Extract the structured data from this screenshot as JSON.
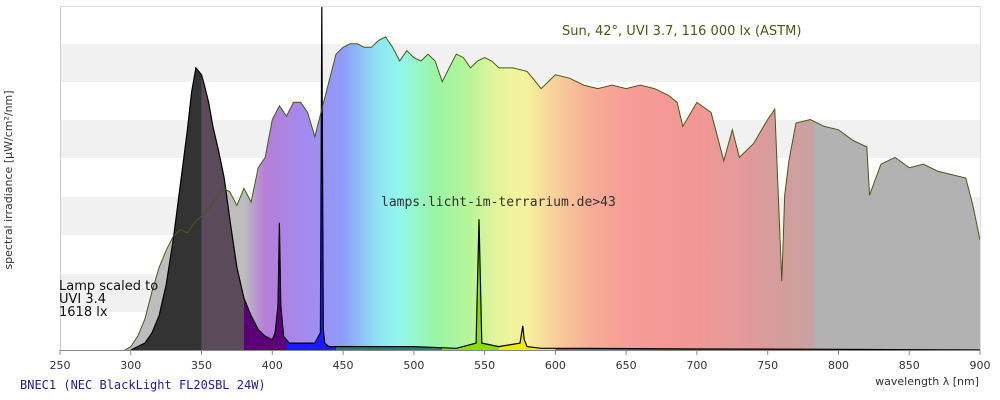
{
  "chart_data": {
    "type": "area",
    "xlabel": "wavelength λ [nm]",
    "ylabel": "spectral irradiance [µW/cm²/nm]",
    "xlim": [
      250,
      900
    ],
    "ylim": [
      0,
      1
    ],
    "x_ticks": [
      250,
      300,
      350,
      400,
      450,
      500,
      550,
      600,
      650,
      700,
      750,
      800,
      850,
      900
    ],
    "grid": "horizontal bands",
    "series": [
      {
        "name": "Sun, 42°, UVI 3.7, 116 000 lx (ASTM)",
        "color": "#4a5a14",
        "x": [
          296,
          300,
          305,
          310,
          315,
          320,
          325,
          330,
          335,
          340,
          345,
          350,
          355,
          360,
          365,
          370,
          375,
          380,
          385,
          390,
          395,
          400,
          405,
          410,
          415,
          420,
          425,
          430,
          435,
          440,
          445,
          450,
          455,
          460,
          465,
          470,
          475,
          480,
          485,
          490,
          495,
          500,
          505,
          510,
          515,
          520,
          525,
          530,
          535,
          540,
          545,
          550,
          555,
          560,
          570,
          580,
          590,
          600,
          610,
          620,
          630,
          640,
          650,
          660,
          670,
          680,
          686,
          690,
          700,
          710,
          719,
          725,
          730,
          740,
          750,
          755,
          760,
          762,
          765,
          770,
          780,
          790,
          800,
          810,
          820,
          822,
          830,
          840,
          850,
          860,
          870,
          880,
          890,
          895,
          900
        ],
        "values": [
          0.0,
          0.01,
          0.04,
          0.09,
          0.17,
          0.24,
          0.29,
          0.33,
          0.35,
          0.34,
          0.37,
          0.39,
          0.41,
          0.44,
          0.47,
          0.46,
          0.42,
          0.47,
          0.43,
          0.53,
          0.56,
          0.67,
          0.71,
          0.68,
          0.72,
          0.72,
          0.69,
          0.62,
          0.7,
          0.78,
          0.86,
          0.88,
          0.89,
          0.89,
          0.88,
          0.88,
          0.9,
          0.91,
          0.88,
          0.84,
          0.87,
          0.85,
          0.84,
          0.86,
          0.84,
          0.78,
          0.82,
          0.86,
          0.85,
          0.82,
          0.84,
          0.85,
          0.84,
          0.82,
          0.82,
          0.81,
          0.76,
          0.8,
          0.79,
          0.77,
          0.76,
          0.77,
          0.76,
          0.77,
          0.76,
          0.74,
          0.72,
          0.65,
          0.72,
          0.69,
          0.55,
          0.64,
          0.56,
          0.6,
          0.67,
          0.7,
          0.2,
          0.45,
          0.55,
          0.66,
          0.67,
          0.65,
          0.64,
          0.61,
          0.59,
          0.45,
          0.54,
          0.56,
          0.53,
          0.54,
          0.52,
          0.51,
          0.5,
          0.42,
          0.32
        ]
      },
      {
        "name": "BNEC1 (NEC BlackLight FL20SBL 24W)",
        "color": "#000000",
        "x": [
          300,
          310,
          315,
          320,
          325,
          330,
          335,
          340,
          343,
          346,
          350,
          352,
          355,
          358,
          362,
          366,
          370,
          375,
          380,
          385,
          390,
          395,
          400,
          402,
          404,
          405,
          406,
          408,
          412,
          420,
          430,
          434,
          435,
          436,
          437,
          440,
          450,
          470,
          490,
          500,
          530,
          544,
          546,
          548,
          560,
          575,
          577,
          578,
          580,
          590,
          620,
          700,
          800,
          900
        ],
        "values": [
          0.0,
          0.02,
          0.05,
          0.1,
          0.19,
          0.32,
          0.48,
          0.64,
          0.75,
          0.82,
          0.8,
          0.77,
          0.72,
          0.65,
          0.58,
          0.5,
          0.38,
          0.24,
          0.15,
          0.1,
          0.06,
          0.04,
          0.03,
          0.05,
          0.13,
          0.37,
          0.13,
          0.04,
          0.02,
          0.02,
          0.02,
          0.05,
          1.0,
          0.06,
          0.02,
          0.01,
          0.01,
          0.01,
          0.01,
          0.01,
          0.005,
          0.02,
          0.38,
          0.02,
          0.01,
          0.02,
          0.07,
          0.03,
          0.01,
          0.005,
          0.005,
          0.003,
          0.002,
          0.0
        ]
      }
    ],
    "annotations": {
      "sun": "Sun, 42°, UVI 3.7, 116 000 lx (ASTM)",
      "lamp_lines": [
        "Lamp scaled to",
        "UVI 3.4",
        "1618 lx"
      ],
      "watermark": "lamps.licht-im-terrarium.de>43"
    }
  },
  "footer": {
    "title": "BNEC1 (NEC BlackLight FL20SBL 24W)"
  },
  "colors": {
    "band": "#f1f1f1",
    "plot_bg": "#ffffff",
    "axis": "#888888",
    "sun_line": "#4a5a14",
    "lamp_line": "#000000",
    "footer_text": "#22228a"
  }
}
